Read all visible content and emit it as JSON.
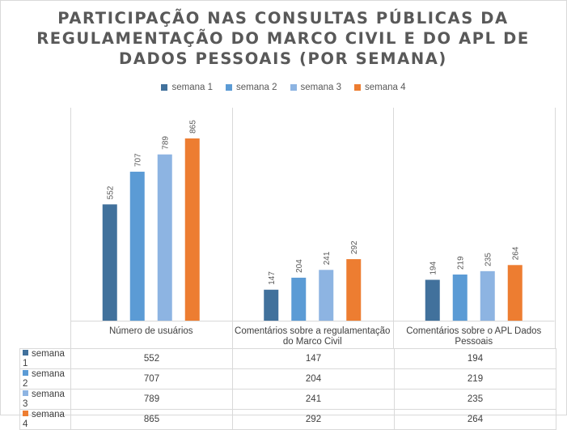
{
  "chart_data": {
    "type": "bar",
    "title": "PARTICIPAÇÃO NAS CONSULTAS PÚBLICAS DA REGULAMENTAÇÃO DO MARCO CIVIL E DO APL DE DADOS PESSOAIS (POR SEMANA)",
    "title_lines": [
      "PARTICIPAÇÃO NAS CONSULTAS PÚBLICAS DA",
      "REGULAMENTAÇÃO DO MARCO CIVIL E DO APL DE",
      "DADOS PESSOAIS (POR SEMANA)"
    ],
    "categories": [
      "Número de usuários",
      "Comentários sobre a regulamentação do Marco Civil",
      "Comentários sobre o APL Dados Pessoais"
    ],
    "category_lines": [
      [
        "Número de usuários"
      ],
      [
        "Comentários sobre a regulamentação",
        "do Marco Civil"
      ],
      [
        "Comentários sobre o APL Dados",
        "Pessoais"
      ]
    ],
    "series": [
      {
        "name": "semana 1",
        "color": "#41719c",
        "values": [
          552,
          147,
          194
        ]
      },
      {
        "name": "semana 2",
        "color": "#5b9bd5",
        "values": [
          707,
          204,
          219
        ]
      },
      {
        "name": "semana 3",
        "color": "#8db4e2",
        "values": [
          789,
          241,
          235
        ]
      },
      {
        "name": "semana 4",
        "color": "#ed7d31",
        "values": [
          865,
          292,
          264
        ]
      }
    ],
    "ylim": [
      0,
      1000
    ],
    "legend_position": "top",
    "grid": false,
    "data_table": true,
    "data_labels": "vertical"
  }
}
